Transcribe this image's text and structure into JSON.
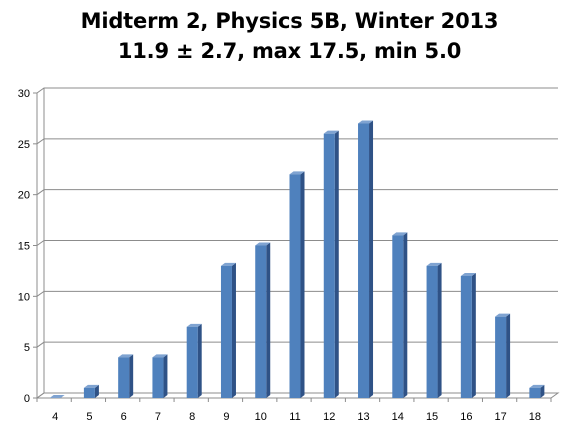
{
  "chart_data": {
    "type": "bar",
    "title": "Midterm 2, Physics 5B, Winter 2013",
    "subtitle": "11.9 ± 2.7,  max 17.5, min 5.0",
    "categories": [
      "4",
      "5",
      "6",
      "7",
      "8",
      "9",
      "10",
      "11",
      "12",
      "13",
      "14",
      "15",
      "16",
      "17",
      "18"
    ],
    "values": [
      0,
      1,
      4,
      4,
      7,
      13,
      15,
      22,
      26,
      27,
      16,
      13,
      12,
      8,
      1
    ],
    "ylim": [
      0,
      30
    ],
    "yticks": [
      0,
      5,
      10,
      15,
      20,
      25,
      30
    ],
    "xlabel": "",
    "ylabel": "",
    "grid": true,
    "legend": "none",
    "style": "3d-column",
    "colors": {
      "bar_front": "#4F81BD",
      "bar_side": "#2F5286",
      "bar_top": "#7FA3D1",
      "gridline": "#8C8C8C",
      "wall": "#FFFFFF"
    }
  }
}
